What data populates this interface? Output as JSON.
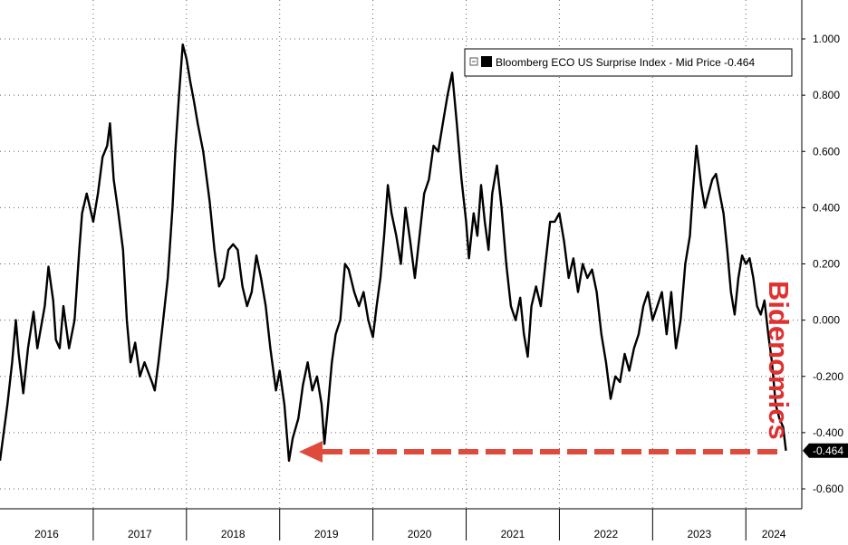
{
  "chart_data": {
    "type": "line",
    "legend": "Bloomberg ECO US Surprise Index - Mid Price -0.464",
    "legend_position": "top-right",
    "last_value_label": "-0.464",
    "annotation": "Bidenomics",
    "annotation_color": "#e03030",
    "arrow_color": "#e04a3c",
    "line_color": "#000000",
    "grid": true,
    "grid_style": "dotted",
    "ylim": [
      -0.65,
      1.1
    ],
    "xlim": [
      2016.0,
      2024.6
    ],
    "y_ticks": [
      "1.000",
      "0.800",
      "0.600",
      "0.400",
      "0.200",
      "0.000",
      "-0.200",
      "-0.400",
      "-0.600"
    ],
    "y_tick_values": [
      1.0,
      0.8,
      0.6,
      0.4,
      0.2,
      0.0,
      -0.2,
      -0.4,
      -0.6
    ],
    "x_ticks": [
      "2016",
      "2017",
      "2018",
      "2019",
      "2020",
      "2021",
      "2022",
      "2023",
      "2024"
    ],
    "series": [
      {
        "name": "Bloomberg ECO US Surprise Index",
        "points": [
          [
            2016.0,
            -0.5
          ],
          [
            2016.08,
            -0.3
          ],
          [
            2016.13,
            -0.15
          ],
          [
            2016.17,
            0.0
          ],
          [
            2016.2,
            -0.12
          ],
          [
            2016.25,
            -0.26
          ],
          [
            2016.3,
            -0.1
          ],
          [
            2016.36,
            0.03
          ],
          [
            2016.4,
            -0.1
          ],
          [
            2016.48,
            0.05
          ],
          [
            2016.52,
            0.19
          ],
          [
            2016.57,
            0.07
          ],
          [
            2016.6,
            -0.07
          ],
          [
            2016.64,
            -0.1
          ],
          [
            2016.68,
            0.05
          ],
          [
            2016.74,
            -0.1
          ],
          [
            2016.8,
            0.0
          ],
          [
            2016.85,
            0.25
          ],
          [
            2016.88,
            0.38
          ],
          [
            2016.93,
            0.45
          ],
          [
            2017.0,
            0.35
          ],
          [
            2017.05,
            0.45
          ],
          [
            2017.1,
            0.58
          ],
          [
            2017.15,
            0.62
          ],
          [
            2017.18,
            0.7
          ],
          [
            2017.22,
            0.5
          ],
          [
            2017.27,
            0.38
          ],
          [
            2017.32,
            0.25
          ],
          [
            2017.36,
            0.0
          ],
          [
            2017.4,
            -0.15
          ],
          [
            2017.45,
            -0.08
          ],
          [
            2017.5,
            -0.2
          ],
          [
            2017.55,
            -0.15
          ],
          [
            2017.63,
            -0.22
          ],
          [
            2017.66,
            -0.25
          ],
          [
            2017.7,
            -0.15
          ],
          [
            2017.75,
            0.0
          ],
          [
            2017.8,
            0.15
          ],
          [
            2017.85,
            0.4
          ],
          [
            2017.88,
            0.6
          ],
          [
            2017.92,
            0.8
          ],
          [
            2017.96,
            0.98
          ],
          [
            2018.0,
            0.93
          ],
          [
            2018.04,
            0.85
          ],
          [
            2018.08,
            0.78
          ],
          [
            2018.12,
            0.7
          ],
          [
            2018.18,
            0.6
          ],
          [
            2018.25,
            0.42
          ],
          [
            2018.3,
            0.25
          ],
          [
            2018.35,
            0.12
          ],
          [
            2018.4,
            0.15
          ],
          [
            2018.45,
            0.25
          ],
          [
            2018.5,
            0.27
          ],
          [
            2018.55,
            0.25
          ],
          [
            2018.6,
            0.12
          ],
          [
            2018.65,
            0.05
          ],
          [
            2018.7,
            0.1
          ],
          [
            2018.75,
            0.23
          ],
          [
            2018.8,
            0.15
          ],
          [
            2018.85,
            0.05
          ],
          [
            2018.9,
            -0.1
          ],
          [
            2018.96,
            -0.25
          ],
          [
            2019.0,
            -0.18
          ],
          [
            2019.05,
            -0.3
          ],
          [
            2019.1,
            -0.5
          ],
          [
            2019.14,
            -0.42
          ],
          [
            2019.2,
            -0.35
          ],
          [
            2019.25,
            -0.23
          ],
          [
            2019.3,
            -0.15
          ],
          [
            2019.35,
            -0.25
          ],
          [
            2019.4,
            -0.2
          ],
          [
            2019.45,
            -0.3
          ],
          [
            2019.48,
            -0.44
          ],
          [
            2019.52,
            -0.3
          ],
          [
            2019.56,
            -0.15
          ],
          [
            2019.6,
            -0.05
          ],
          [
            2019.65,
            0.0
          ],
          [
            2019.7,
            0.2
          ],
          [
            2019.74,
            0.18
          ],
          [
            2019.8,
            0.1
          ],
          [
            2019.85,
            0.05
          ],
          [
            2019.9,
            0.1
          ],
          [
            2019.95,
            0.0
          ],
          [
            2020.0,
            -0.06
          ],
          [
            2020.04,
            0.05
          ],
          [
            2020.08,
            0.15
          ],
          [
            2020.12,
            0.3
          ],
          [
            2020.16,
            0.48
          ],
          [
            2020.2,
            0.38
          ],
          [
            2020.25,
            0.3
          ],
          [
            2020.3,
            0.2
          ],
          [
            2020.35,
            0.4
          ],
          [
            2020.4,
            0.28
          ],
          [
            2020.45,
            0.15
          ],
          [
            2020.5,
            0.3
          ],
          [
            2020.55,
            0.45
          ],
          [
            2020.6,
            0.5
          ],
          [
            2020.65,
            0.62
          ],
          [
            2020.7,
            0.6
          ],
          [
            2020.75,
            0.7
          ],
          [
            2020.8,
            0.8
          ],
          [
            2020.85,
            0.88
          ],
          [
            2020.9,
            0.7
          ],
          [
            2020.95,
            0.5
          ],
          [
            2021.0,
            0.35
          ],
          [
            2021.03,
            0.22
          ],
          [
            2021.08,
            0.38
          ],
          [
            2021.12,
            0.3
          ],
          [
            2021.16,
            0.48
          ],
          [
            2021.2,
            0.35
          ],
          [
            2021.24,
            0.25
          ],
          [
            2021.28,
            0.45
          ],
          [
            2021.33,
            0.55
          ],
          [
            2021.38,
            0.4
          ],
          [
            2021.43,
            0.2
          ],
          [
            2021.48,
            0.05
          ],
          [
            2021.53,
            0.0
          ],
          [
            2021.58,
            0.08
          ],
          [
            2021.62,
            -0.05
          ],
          [
            2021.66,
            -0.13
          ],
          [
            2021.7,
            0.05
          ],
          [
            2021.75,
            0.12
          ],
          [
            2021.8,
            0.05
          ],
          [
            2021.85,
            0.2
          ],
          [
            2021.9,
            0.35
          ],
          [
            2021.95,
            0.35
          ],
          [
            2022.0,
            0.38
          ],
          [
            2022.05,
            0.28
          ],
          [
            2022.1,
            0.15
          ],
          [
            2022.15,
            0.22
          ],
          [
            2022.2,
            0.1
          ],
          [
            2022.25,
            0.2
          ],
          [
            2022.3,
            0.15
          ],
          [
            2022.35,
            0.18
          ],
          [
            2022.4,
            0.1
          ],
          [
            2022.45,
            -0.05
          ],
          [
            2022.5,
            -0.15
          ],
          [
            2022.55,
            -0.28
          ],
          [
            2022.6,
            -0.2
          ],
          [
            2022.65,
            -0.22
          ],
          [
            2022.7,
            -0.12
          ],
          [
            2022.75,
            -0.18
          ],
          [
            2022.8,
            -0.1
          ],
          [
            2022.85,
            -0.05
          ],
          [
            2022.9,
            0.05
          ],
          [
            2022.95,
            0.1
          ],
          [
            2023.0,
            0.0
          ],
          [
            2023.05,
            0.05
          ],
          [
            2023.1,
            0.1
          ],
          [
            2023.15,
            -0.05
          ],
          [
            2023.2,
            0.1
          ],
          [
            2023.25,
            -0.1
          ],
          [
            2023.3,
            0.0
          ],
          [
            2023.35,
            0.2
          ],
          [
            2023.4,
            0.3
          ],
          [
            2023.43,
            0.45
          ],
          [
            2023.47,
            0.62
          ],
          [
            2023.52,
            0.48
          ],
          [
            2023.56,
            0.4
          ],
          [
            2023.6,
            0.45
          ],
          [
            2023.64,
            0.5
          ],
          [
            2023.68,
            0.52
          ],
          [
            2023.72,
            0.45
          ],
          [
            2023.76,
            0.38
          ],
          [
            2023.8,
            0.25
          ],
          [
            2023.84,
            0.1
          ],
          [
            2023.88,
            0.02
          ],
          [
            2023.92,
            0.15
          ],
          [
            2023.96,
            0.23
          ],
          [
            2024.0,
            0.2
          ],
          [
            2024.04,
            0.22
          ],
          [
            2024.08,
            0.15
          ],
          [
            2024.12,
            0.05
          ],
          [
            2024.16,
            0.02
          ],
          [
            2024.2,
            0.07
          ],
          [
            2024.24,
            -0.05
          ],
          [
            2024.28,
            -0.15
          ],
          [
            2024.32,
            -0.3
          ],
          [
            2024.36,
            -0.35
          ],
          [
            2024.4,
            -0.38
          ],
          [
            2024.43,
            -0.464
          ]
        ]
      }
    ]
  }
}
